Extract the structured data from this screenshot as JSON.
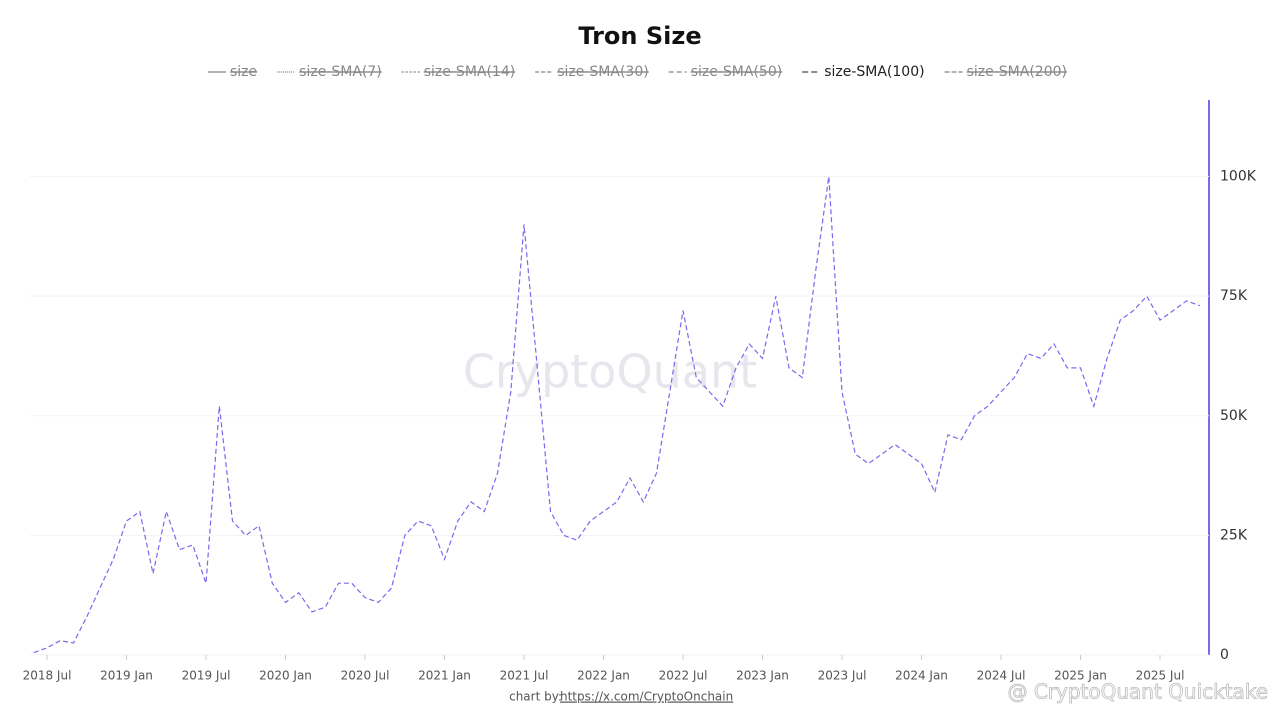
{
  "chart_data": {
    "type": "line",
    "title": "Tron Size",
    "watermark": "CryptoQuant",
    "credit_prefix": "chart by:",
    "credit_link": "https://x.com/CryptoOnchain",
    "corner_text": "@ CryptoQuant Quicktake",
    "legend": [
      {
        "name": "size",
        "hidden": true
      },
      {
        "name": "size-SMA(7)",
        "hidden": true
      },
      {
        "name": "size-SMA(14)",
        "hidden": true
      },
      {
        "name": "size-SMA(30)",
        "hidden": true
      },
      {
        "name": "size-SMA(50)",
        "hidden": true
      },
      {
        "name": "size-SMA(100)",
        "hidden": false
      },
      {
        "name": "size-SMA(200)",
        "hidden": true
      }
    ],
    "x": [
      "2018-06",
      "2018-07",
      "2018-08",
      "2018-09",
      "2018-10",
      "2018-11",
      "2018-12",
      "2019-01",
      "2019-02",
      "2019-03",
      "2019-04",
      "2019-05",
      "2019-06",
      "2019-07",
      "2019-08",
      "2019-09",
      "2019-10",
      "2019-11",
      "2019-12",
      "2020-01",
      "2020-02",
      "2020-03",
      "2020-04",
      "2020-05",
      "2020-06",
      "2020-07",
      "2020-08",
      "2020-09",
      "2020-10",
      "2020-11",
      "2020-12",
      "2021-01",
      "2021-02",
      "2021-03",
      "2021-04",
      "2021-05",
      "2021-06",
      "2021-07",
      "2021-08",
      "2021-09",
      "2021-10",
      "2021-11",
      "2021-12",
      "2022-01",
      "2022-02",
      "2022-03",
      "2022-04",
      "2022-05",
      "2022-06",
      "2022-07",
      "2022-08",
      "2022-09",
      "2022-10",
      "2022-11",
      "2022-12",
      "2023-01",
      "2023-02",
      "2023-03",
      "2023-04",
      "2023-05",
      "2023-06",
      "2023-07",
      "2023-08",
      "2023-09",
      "2023-10",
      "2023-11",
      "2023-12",
      "2024-01",
      "2024-02",
      "2024-03",
      "2024-04",
      "2024-05",
      "2024-06",
      "2024-07",
      "2024-08",
      "2024-09",
      "2024-10",
      "2024-11",
      "2024-12",
      "2025-01",
      "2025-02",
      "2025-03",
      "2025-04",
      "2025-05",
      "2025-06",
      "2025-07",
      "2025-08",
      "2025-09",
      "2025-10"
    ],
    "series": [
      {
        "color": "#7b68ee",
        "values": [
          500,
          1500,
          3000,
          2500,
          8000,
          14000,
          20000,
          28000,
          30000,
          17000,
          30000,
          22000,
          23000,
          15000,
          52000,
          28000,
          25000,
          27000,
          15000,
          11000,
          13000,
          9000,
          10000,
          15000,
          15000,
          12000,
          11000,
          14000,
          25000,
          28000,
          27000,
          20000,
          28000,
          32000,
          30000,
          38000,
          55000,
          90000,
          60000,
          30000,
          25000,
          24000,
          28000,
          30000,
          32000,
          37000,
          32000,
          38000,
          55000,
          72000,
          58000,
          55000,
          52000,
          60000,
          65000,
          62000,
          75000,
          60000,
          58000,
          80000,
          100000,
          55000,
          42000,
          40000,
          42000,
          44000,
          42000,
          40000,
          34000,
          46000,
          45000,
          50000,
          52000,
          55000,
          58000,
          63000,
          62000,
          65000,
          60000,
          60000,
          52000,
          62000,
          70000,
          72000,
          75000,
          70000,
          72000,
          74000,
          73000
        ]
      }
    ],
    "xticks": [
      {
        "value": "2018-07",
        "label": "2018 Jul"
      },
      {
        "value": "2019-01",
        "label": "2019 Jan"
      },
      {
        "value": "2019-07",
        "label": "2019 Jul"
      },
      {
        "value": "2020-01",
        "label": "2020 Jan"
      },
      {
        "value": "2020-07",
        "label": "2020 Jul"
      },
      {
        "value": "2021-01",
        "label": "2021 Jan"
      },
      {
        "value": "2021-07",
        "label": "2021 Jul"
      },
      {
        "value": "2022-01",
        "label": "2022 Jan"
      },
      {
        "value": "2022-07",
        "label": "2022 Jul"
      },
      {
        "value": "2023-01",
        "label": "2023 Jan"
      },
      {
        "value": "2023-07",
        "label": "2023 Jul"
      },
      {
        "value": "2024-01",
        "label": "2024 Jan"
      },
      {
        "value": "2024-07",
        "label": "2024 Jul"
      },
      {
        "value": "2025-01",
        "label": "2025 Jan"
      },
      {
        "value": "2025-07",
        "label": "2025 Jul"
      }
    ],
    "ylim": [
      0,
      116000
    ],
    "yticks": [
      0,
      {
        "value": 25000,
        "label": "25K"
      },
      {
        "value": 50000,
        "label": "50K"
      },
      {
        "value": 75000,
        "label": "75K"
      },
      {
        "value": 100000,
        "label": "100K"
      }
    ],
    "grid": true
  }
}
